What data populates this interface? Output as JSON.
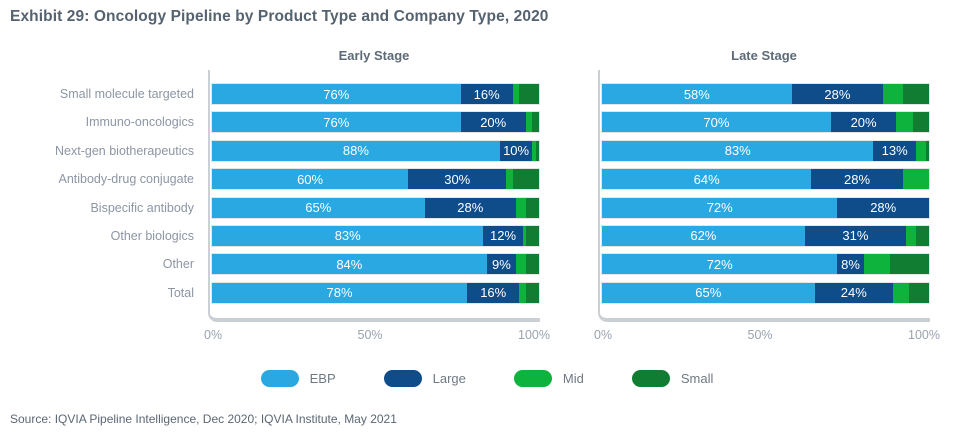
{
  "title": "Exhibit 29: Oncology Pipeline by Product Type and Company Type, 2020",
  "source": "Source: IQVIA Pipeline Intelligence, Dec 2020; IQVIA Institute, May 2021",
  "colors": {
    "ebp": "#29A8E1",
    "large": "#0E4C8A",
    "mid": "#0DB33C",
    "small": "#117D33"
  },
  "legend": {
    "items": [
      {
        "key": "ebp",
        "label": "EBP"
      },
      {
        "key": "large",
        "label": "Large"
      },
      {
        "key": "mid",
        "label": "Mid"
      },
      {
        "key": "small",
        "label": "Small"
      }
    ],
    "position": "bottom-center"
  },
  "chart_data": [
    {
      "type": "bar",
      "orientation": "horizontal",
      "stacked": true,
      "title": "Early Stage",
      "grid": false,
      "xlim": [
        0,
        100
      ],
      "xticks": [
        "0%",
        "50%",
        "100%"
      ],
      "value_labels_shown_for": [
        "EBP",
        "Large"
      ],
      "categories": [
        "Small molecule targeted",
        "Immuno-oncologics",
        "Next-gen biotherapeutics",
        "Antibody-drug conjugate",
        "Bispecific antibody",
        "Other biologics",
        "Other",
        "Total"
      ],
      "series": [
        {
          "name": "EBP",
          "values": [
            76,
            76,
            88,
            60,
            65,
            83,
            84,
            78
          ]
        },
        {
          "name": "Large",
          "values": [
            16,
            20,
            10,
            30,
            28,
            12,
            9,
            16
          ]
        },
        {
          "name": "Mid",
          "values": [
            2,
            2,
            1,
            2,
            3,
            1,
            3,
            2
          ]
        },
        {
          "name": "Small",
          "values": [
            6,
            2,
            1,
            8,
            4,
            4,
            4,
            4
          ]
        }
      ]
    },
    {
      "type": "bar",
      "orientation": "horizontal",
      "stacked": true,
      "title": "Late Stage",
      "grid": false,
      "xlim": [
        0,
        100
      ],
      "xticks": [
        "0%",
        "50%",
        "100%"
      ],
      "value_labels_shown_for": [
        "EBP",
        "Large"
      ],
      "categories": [
        "Small molecule targeted",
        "Immuno-oncologics",
        "Next-gen biotherapeutics",
        "Antibody-drug conjugate",
        "Bispecific antibody",
        "Other biologics",
        "Other",
        "Total"
      ],
      "series": [
        {
          "name": "EBP",
          "values": [
            58,
            70,
            83,
            64,
            72,
            62,
            72,
            65
          ]
        },
        {
          "name": "Large",
          "values": [
            28,
            20,
            13,
            28,
            28,
            31,
            8,
            24
          ]
        },
        {
          "name": "Mid",
          "values": [
            6,
            5,
            3,
            8,
            0,
            3,
            8,
            5
          ]
        },
        {
          "name": "Small",
          "values": [
            8,
            5,
            1,
            0,
            0,
            4,
            12,
            6
          ]
        }
      ]
    }
  ]
}
